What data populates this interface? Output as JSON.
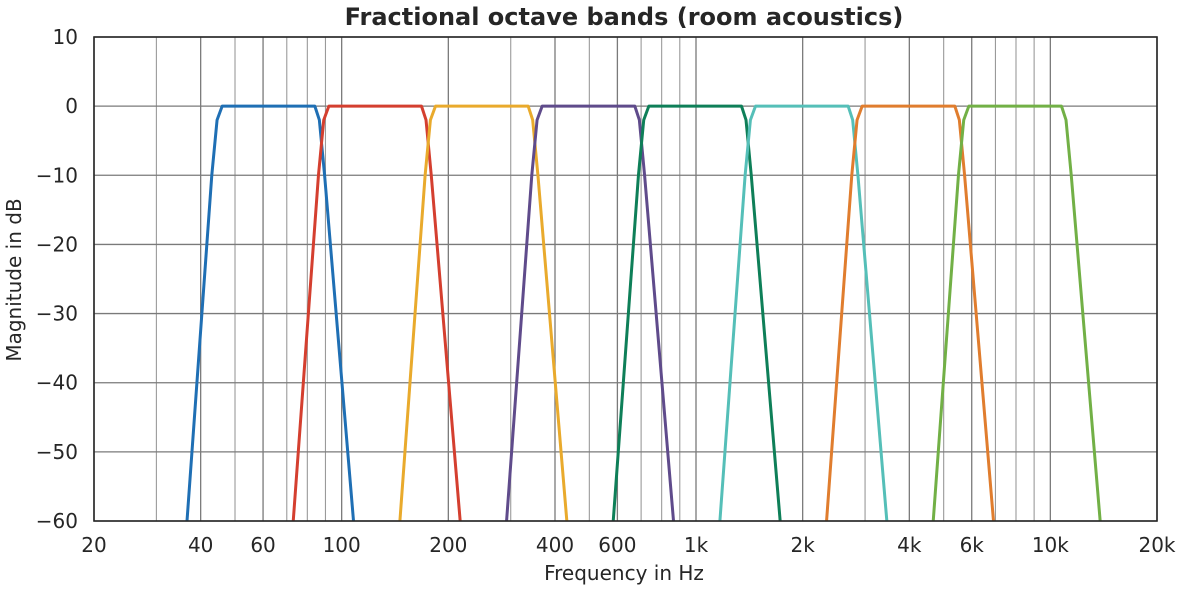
{
  "chart_data": {
    "type": "line",
    "title": "Fractional octave bands (room acoustics)",
    "xlabel": "Frequency in Hz",
    "ylabel": "Magnitude in dB",
    "xscale": "log",
    "xlim": [
      20,
      20000
    ],
    "ylim": [
      -60,
      10
    ],
    "grid": true,
    "legend": "none",
    "x_ticks": [
      {
        "value": 20,
        "label": "20"
      },
      {
        "value": 40,
        "label": "40"
      },
      {
        "value": 60,
        "label": "60"
      },
      {
        "value": 100,
        "label": "100"
      },
      {
        "value": 200,
        "label": "200"
      },
      {
        "value": 400,
        "label": "400"
      },
      {
        "value": 600,
        "label": "600"
      },
      {
        "value": 1000,
        "label": "1k"
      },
      {
        "value": 2000,
        "label": "2k"
      },
      {
        "value": 4000,
        "label": "4k"
      },
      {
        "value": 6000,
        "label": "6k"
      },
      {
        "value": 10000,
        "label": "10k"
      },
      {
        "value": 20000,
        "label": "20k"
      }
    ],
    "x_minor_gridlines": [
      30,
      50,
      70,
      80,
      90,
      300,
      500,
      700,
      800,
      900,
      3000,
      5000,
      7000,
      8000,
      9000
    ],
    "y_ticks": [
      10,
      0,
      -10,
      -20,
      -30,
      -40,
      -50,
      -60
    ],
    "series": [
      {
        "color": "#1f6fb4",
        "points": [
          [
            36.6,
            -60
          ],
          [
            43,
            -10
          ],
          [
            44.5,
            -2
          ],
          [
            46,
            0
          ],
          [
            84,
            0
          ],
          [
            86.5,
            -2
          ],
          [
            89.5,
            -10
          ],
          [
            108,
            -60
          ]
        ]
      },
      {
        "color": "#d43f2f",
        "points": [
          [
            73,
            -60
          ],
          [
            86,
            -10
          ],
          [
            89,
            -2
          ],
          [
            92,
            0
          ],
          [
            168,
            0
          ],
          [
            173,
            -2
          ],
          [
            179,
            -10
          ],
          [
            216,
            -60
          ]
        ]
      },
      {
        "color": "#e9aa2c",
        "points": [
          [
            146,
            -60
          ],
          [
            172,
            -10
          ],
          [
            178,
            -2
          ],
          [
            184,
            0
          ],
          [
            336,
            0
          ],
          [
            346,
            -2
          ],
          [
            358,
            -10
          ],
          [
            432,
            -60
          ]
        ]
      },
      {
        "color": "#5f4b8b",
        "points": [
          [
            292,
            -60
          ],
          [
            344,
            -10
          ],
          [
            356,
            -2
          ],
          [
            368,
            0
          ],
          [
            672,
            0
          ],
          [
            692,
            -2
          ],
          [
            716,
            -10
          ],
          [
            864,
            -60
          ]
        ]
      },
      {
        "color": "#0e7f58",
        "points": [
          [
            584,
            -60
          ],
          [
            688,
            -10
          ],
          [
            712,
            -2
          ],
          [
            736,
            0
          ],
          [
            1344,
            0
          ],
          [
            1384,
            -2
          ],
          [
            1432,
            -10
          ],
          [
            1728,
            -60
          ]
        ]
      },
      {
        "color": "#55bfb8",
        "points": [
          [
            1168,
            -60
          ],
          [
            1376,
            -10
          ],
          [
            1424,
            -2
          ],
          [
            1472,
            0
          ],
          [
            2688,
            0
          ],
          [
            2768,
            -2
          ],
          [
            2864,
            -10
          ],
          [
            3456,
            -60
          ]
        ]
      },
      {
        "color": "#e07d2e",
        "points": [
          [
            2336,
            -60
          ],
          [
            2752,
            -10
          ],
          [
            2848,
            -2
          ],
          [
            2944,
            0
          ],
          [
            5376,
            0
          ],
          [
            5536,
            -2
          ],
          [
            5728,
            -10
          ],
          [
            6912,
            -60
          ]
        ]
      },
      {
        "color": "#72b046",
        "points": [
          [
            4672,
            -60
          ],
          [
            5504,
            -10
          ],
          [
            5696,
            -2
          ],
          [
            5888,
            0
          ],
          [
            10752,
            0
          ],
          [
            11072,
            -2
          ],
          [
            11456,
            -10
          ],
          [
            13824,
            -60
          ]
        ]
      }
    ]
  }
}
